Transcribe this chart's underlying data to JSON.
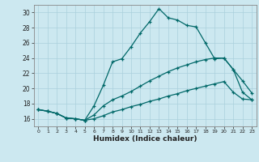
{
  "background_color": "#cce8f0",
  "grid_color": "#aad0dc",
  "line_color": "#006868",
  "xlabel": "Humidex (Indice chaleur)",
  "xlim": [
    -0.5,
    23.5
  ],
  "ylim": [
    15.0,
    31.0
  ],
  "yticks": [
    16,
    18,
    20,
    22,
    24,
    26,
    28,
    30
  ],
  "xticks": [
    0,
    1,
    2,
    3,
    4,
    5,
    6,
    7,
    8,
    9,
    10,
    11,
    12,
    13,
    14,
    15,
    16,
    17,
    18,
    19,
    20,
    21,
    22,
    23
  ],
  "line1_x": [
    0,
    1,
    2,
    3,
    4,
    5,
    6,
    7,
    8,
    9,
    10,
    11,
    12,
    13,
    14,
    15,
    16,
    17,
    18,
    19,
    20,
    21,
    22,
    23
  ],
  "line1_y": [
    17.2,
    17.0,
    16.7,
    16.1,
    16.0,
    15.8,
    17.7,
    20.4,
    23.5,
    23.9,
    25.5,
    27.3,
    28.8,
    30.5,
    29.3,
    29.0,
    28.3,
    28.1,
    26.0,
    23.9,
    24.0,
    22.5,
    21.0,
    19.4
  ],
  "line2_x": [
    0,
    1,
    2,
    3,
    4,
    5,
    6,
    7,
    8,
    9,
    10,
    11,
    12,
    13,
    14,
    15,
    16,
    17,
    18,
    19,
    20,
    21,
    22,
    23
  ],
  "line2_y": [
    17.2,
    17.0,
    16.7,
    16.1,
    16.0,
    15.8,
    16.5,
    17.7,
    18.5,
    19.0,
    19.6,
    20.3,
    21.0,
    21.6,
    22.2,
    22.7,
    23.1,
    23.5,
    23.8,
    24.0,
    24.0,
    22.5,
    19.5,
    18.5
  ],
  "line3_x": [
    0,
    1,
    2,
    3,
    4,
    5,
    6,
    7,
    8,
    9,
    10,
    11,
    12,
    13,
    14,
    15,
    16,
    17,
    18,
    19,
    20,
    21,
    22,
    23
  ],
  "line3_y": [
    17.2,
    17.0,
    16.7,
    16.1,
    16.0,
    15.8,
    16.0,
    16.4,
    16.9,
    17.2,
    17.6,
    17.9,
    18.3,
    18.6,
    19.0,
    19.3,
    19.7,
    20.0,
    20.3,
    20.6,
    20.9,
    19.5,
    18.6,
    18.5
  ]
}
